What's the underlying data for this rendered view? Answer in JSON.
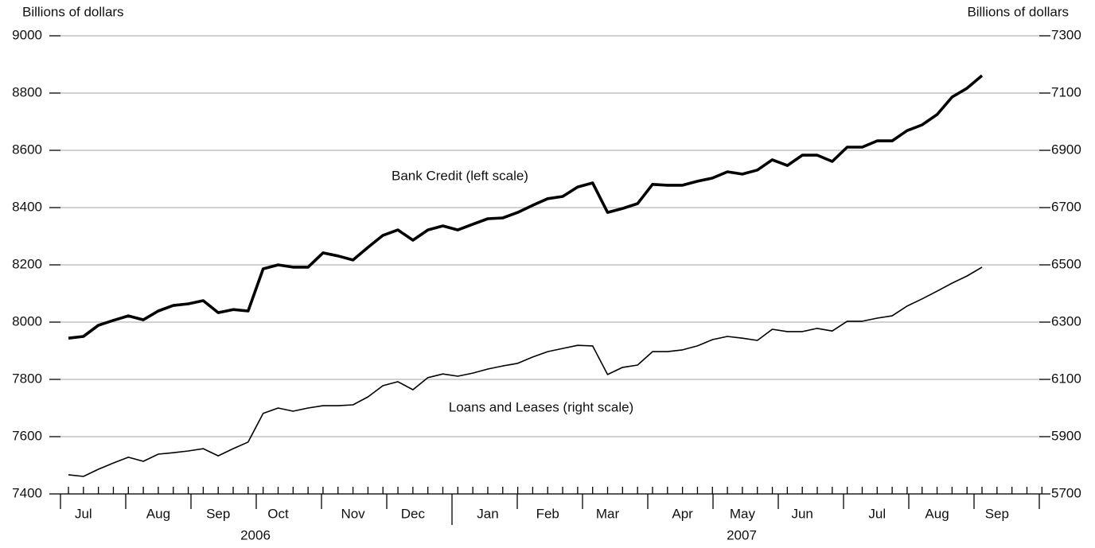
{
  "chart_data": {
    "type": "line",
    "ylabel": "Billions of dollars",
    "y2label": "Billions of dollars",
    "ylim": [
      7400,
      9000
    ],
    "yticks": [
      7400,
      7600,
      7800,
      8000,
      8200,
      8400,
      8600,
      8800,
      9000
    ],
    "y2lim": [
      5700,
      7300
    ],
    "y2ticks": [
      5700,
      5900,
      6100,
      6300,
      6500,
      6700,
      6900,
      7100,
      7300
    ],
    "grid": true,
    "year_labels": [
      "2006",
      "2007"
    ],
    "categories": [
      null,
      "Jul",
      null,
      null,
      null,
      null,
      "Aug",
      null,
      null,
      null,
      "Sep",
      null,
      null,
      null,
      "Oct",
      null,
      null,
      null,
      null,
      "Nov",
      null,
      null,
      null,
      "Dec",
      null,
      null,
      null,
      null,
      "Jan",
      null,
      null,
      null,
      "Feb",
      null,
      null,
      null,
      "Mar",
      null,
      null,
      null,
      null,
      "Apr",
      null,
      null,
      null,
      "May",
      null,
      null,
      null,
      "Jun",
      null,
      null,
      null,
      null,
      "Jul",
      null,
      null,
      null,
      "Aug",
      null,
      null,
      null,
      "Sep",
      null,
      null,
      null
    ],
    "annotations": [
      "Bank Credit (left scale)",
      "Loans and Leases (right scale)"
    ],
    "series": [
      {
        "name": "Bank Credit",
        "color": "#000000",
        "axis": "y",
        "values": [
          7944,
          7950,
          7989,
          8006,
          8022,
          8008,
          8039,
          8058,
          8064,
          8075,
          8033,
          8044,
          8039,
          8186,
          8200,
          8192,
          8192,
          8242,
          8231,
          8217,
          8261,
          8303,
          8322,
          8286,
          8322,
          8336,
          8322,
          8342,
          8361,
          8364,
          8383,
          8408,
          8431,
          8439,
          8472,
          8486,
          8383,
          8397,
          8414,
          8481,
          8478,
          8478,
          8492,
          8503,
          8525,
          8517,
          8531,
          8567,
          8547,
          8583,
          8583,
          8561,
          8611,
          8611,
          8633,
          8633,
          8669,
          8689,
          8725,
          8786,
          8817,
          8861,
          null,
          null,
          null,
          null
        ]
      },
      {
        "name": "Loans and Leases",
        "color": "#000000",
        "axis": "y2",
        "values": [
          5767,
          5761,
          5786,
          5808,
          5828,
          5814,
          5839,
          5844,
          5850,
          5858,
          5833,
          5858,
          5881,
          5981,
          6000,
          5989,
          6000,
          6008,
          6008,
          6011,
          6039,
          6078,
          6092,
          6064,
          6106,
          6119,
          6111,
          6122,
          6136,
          6147,
          6156,
          6178,
          6197,
          6208,
          6219,
          6217,
          6117,
          6142,
          6150,
          6197,
          6197,
          6203,
          6217,
          6239,
          6250,
          6244,
          6236,
          6275,
          6267,
          6267,
          6278,
          6269,
          6303,
          6303,
          6314,
          6322,
          6356,
          6381,
          6408,
          6436,
          6461,
          6492,
          null,
          null,
          null,
          null
        ]
      }
    ]
  }
}
